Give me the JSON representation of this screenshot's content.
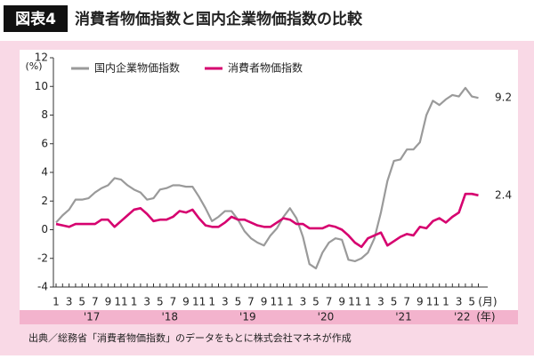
{
  "chart_data": {
    "type": "line",
    "badge": "図表4",
    "title": "消費者物価指数と国内企業物価指数の比較",
    "y_unit": "(%)",
    "x_unit": "(月)",
    "year_unit": "(年)",
    "categories": [
      "1",
      null,
      "3",
      null,
      "5",
      null,
      "7",
      null,
      "9",
      null,
      "11",
      null,
      "1",
      null,
      "3",
      null,
      "5",
      null,
      "7",
      null,
      "9",
      null,
      "11",
      null,
      "1",
      null,
      "3",
      null,
      "5",
      null,
      "7",
      null,
      "9",
      null,
      "11",
      null,
      "1",
      null,
      "3",
      null,
      "5",
      null,
      "7",
      null,
      "9",
      null,
      "11",
      null,
      "1",
      null,
      "3",
      null,
      "5",
      null,
      "7",
      null,
      "9",
      null,
      "11",
      null,
      "1",
      null,
      "3",
      null,
      "5",
      null
    ],
    "year_labels": [
      "'17",
      "'18",
      "'19",
      "'20",
      "'21",
      "'22"
    ],
    "series": [
      {
        "name": "国内企業物価指数",
        "color": "#9a9a9a",
        "values": [
          0.5,
          1.0,
          1.4,
          2.1,
          2.1,
          2.2,
          2.6,
          2.9,
          3.1,
          3.6,
          3.5,
          3.1,
          2.8,
          2.6,
          2.1,
          2.2,
          2.8,
          2.9,
          3.1,
          3.1,
          3.0,
          3.0,
          2.3,
          1.5,
          0.6,
          0.9,
          1.3,
          1.3,
          0.7,
          -0.1,
          -0.6,
          -0.9,
          -1.1,
          -0.4,
          0.1,
          0.9,
          1.5,
          0.8,
          -0.5,
          -2.4,
          -2.7,
          -1.6,
          -0.9,
          -0.6,
          -0.7,
          -2.1,
          -2.2,
          -2.0,
          -1.6,
          -0.6,
          1.2,
          3.4,
          4.8,
          4.9,
          5.6,
          5.6,
          6.1,
          8.0,
          9.0,
          8.7,
          9.1,
          9.4,
          9.3,
          9.9,
          9.3,
          9.2
        ]
      },
      {
        "name": "消費者物価指数",
        "color": "#d6006f",
        "values": [
          0.4,
          0.3,
          0.2,
          0.4,
          0.4,
          0.4,
          0.4,
          0.7,
          0.7,
          0.2,
          0.6,
          1.0,
          1.4,
          1.5,
          1.1,
          0.6,
          0.7,
          0.7,
          0.9,
          1.3,
          1.2,
          1.4,
          0.8,
          0.3,
          0.2,
          0.2,
          0.5,
          0.9,
          0.7,
          0.7,
          0.5,
          0.3,
          0.2,
          0.2,
          0.5,
          0.8,
          0.7,
          0.4,
          0.4,
          0.1,
          0.1,
          0.1,
          0.3,
          0.2,
          0.0,
          -0.4,
          -0.9,
          -1.2,
          -0.6,
          -0.4,
          -0.2,
          -1.1,
          -0.8,
          -0.5,
          -0.3,
          -0.4,
          0.2,
          0.1,
          0.6,
          0.8,
          0.5,
          0.9,
          1.2,
          2.5,
          2.5,
          2.4
        ]
      }
    ],
    "ylim": [
      -4,
      12
    ],
    "yticks": [
      -4,
      -2,
      0,
      2,
      4,
      6,
      8,
      10,
      12
    ],
    "grid": false,
    "legend": "top-left",
    "source": "出典／総務省「消費者物価指数」のデータをもとに株式会社マネネが作成"
  }
}
